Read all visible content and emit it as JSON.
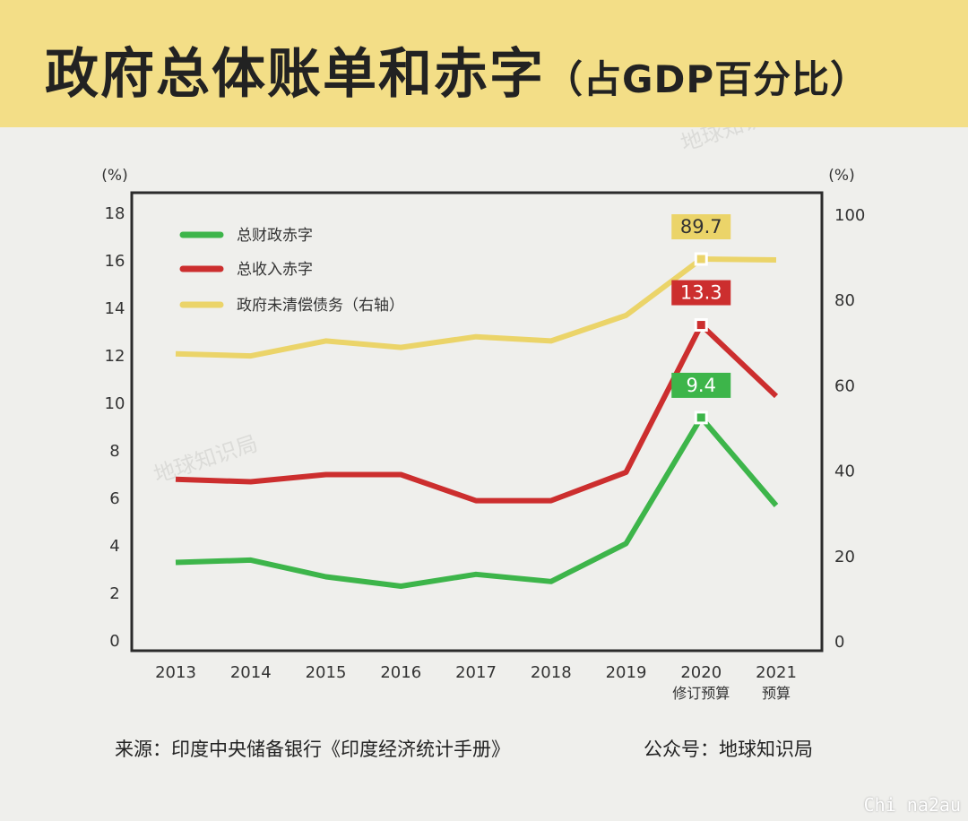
{
  "header": {
    "title": "政府总体账单和赤字",
    "subtitle": "（占GDP百分比）"
  },
  "chart_data": {
    "type": "line",
    "x": [
      "2013",
      "2014",
      "2015",
      "2016",
      "2017",
      "2018",
      "2019",
      "2020",
      "2021"
    ],
    "x_sublabels": [
      "",
      "",
      "",
      "",
      "",
      "",
      "",
      "修订预算",
      "预算"
    ],
    "y_left": {
      "unit": "(%)",
      "ylim": [
        0,
        18
      ],
      "ticks": [
        0,
        2,
        4,
        6,
        8,
        10,
        12,
        14,
        16,
        18
      ]
    },
    "y_right": {
      "unit": "(%)",
      "ylim": [
        0,
        100
      ],
      "ticks": [
        0,
        20,
        40,
        60,
        80,
        100
      ]
    },
    "grid": false,
    "legend_position": "top-left",
    "series": [
      {
        "name": "总财政赤字",
        "axis": "left",
        "color": "#3db54a",
        "values": [
          3.3,
          3.4,
          2.7,
          2.3,
          2.8,
          2.5,
          4.1,
          9.4,
          5.7
        ]
      },
      {
        "name": "总收入赤字",
        "axis": "left",
        "color": "#cc2e2e",
        "values": [
          6.8,
          6.7,
          7.0,
          7.0,
          5.9,
          5.9,
          7.1,
          13.3,
          10.3
        ]
      },
      {
        "name": "政府未清偿债务（右轴）",
        "axis": "right",
        "color": "#ebd469",
        "values": [
          67.5,
          67.0,
          70.5,
          69.0,
          71.5,
          70.5,
          76.5,
          89.7,
          89.5
        ]
      }
    ],
    "annotations": [
      {
        "series": 2,
        "index": 7,
        "text": "89.7",
        "color": "#ebd469",
        "text_color": "#333333"
      },
      {
        "series": 1,
        "index": 7,
        "text": "13.3",
        "color": "#cc2e2e",
        "text_color": "#ffffff"
      },
      {
        "series": 0,
        "index": 7,
        "text": "9.4",
        "color": "#3db54a",
        "text_color": "#ffffff"
      }
    ]
  },
  "watermarks": [
    "地球知识局",
    "地球知识局"
  ],
  "footer": {
    "source": "来源：印度中央储备银行《印度经济统计手册》",
    "account": "公众号：地球知识局"
  },
  "corner_mark": "Chi na2au"
}
